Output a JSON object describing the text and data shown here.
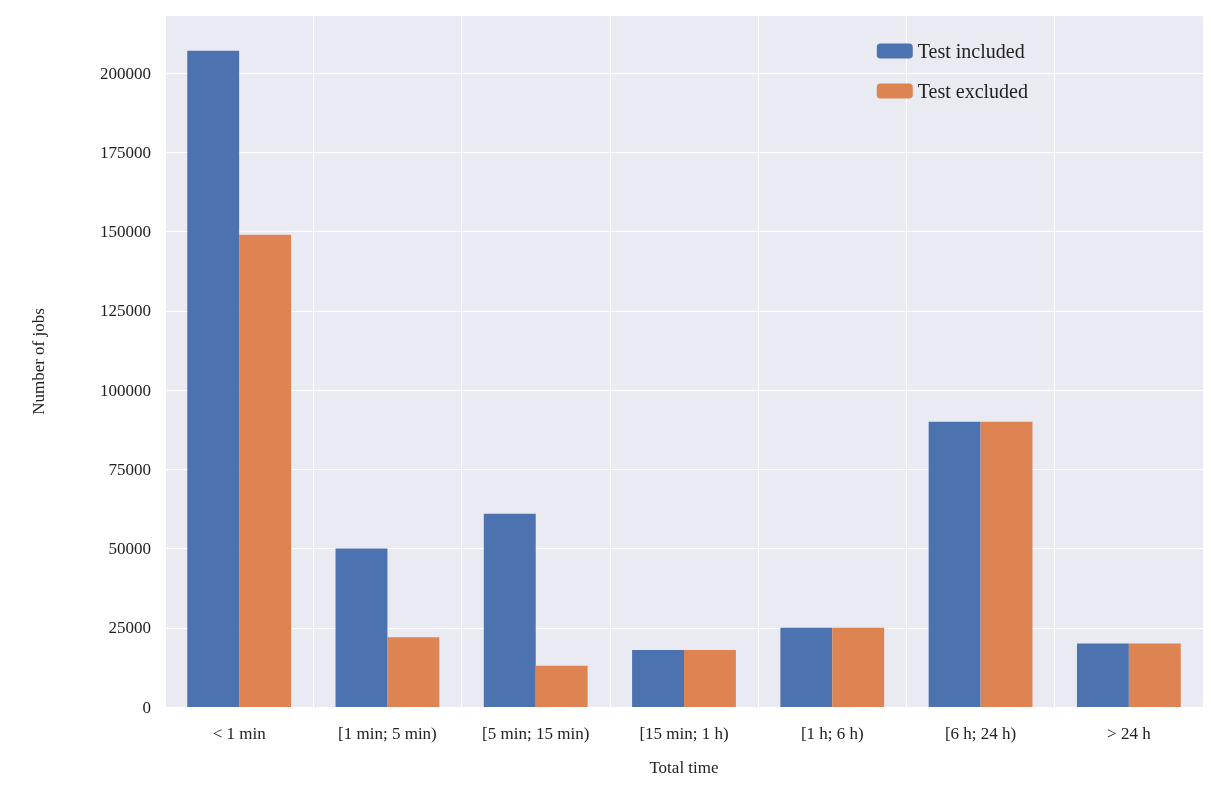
{
  "chart_data": {
    "type": "bar",
    "xlabel": "Total time",
    "ylabel": "Number of jobs",
    "categories": [
      "< 1 min",
      "[1 min; 5 min)",
      "[5 min; 15 min)",
      "[15 min; 1 h)",
      "[1 h; 6 h)",
      "[6 h; 24 h)",
      "> 24 h"
    ],
    "series": [
      {
        "name": "Test included",
        "color": "#4c72b0",
        "values": [
          207000,
          50000,
          61000,
          18000,
          25000,
          90000,
          20000
        ]
      },
      {
        "name": "Test excluded",
        "color": "#dd8452",
        "values": [
          149000,
          22000,
          13000,
          18000,
          25000,
          90000,
          20000
        ]
      }
    ],
    "ylim": [
      0,
      218000
    ],
    "yticks": [
      0,
      25000,
      50000,
      75000,
      100000,
      125000,
      150000,
      175000,
      200000
    ],
    "grid": true,
    "legend": "top right"
  }
}
